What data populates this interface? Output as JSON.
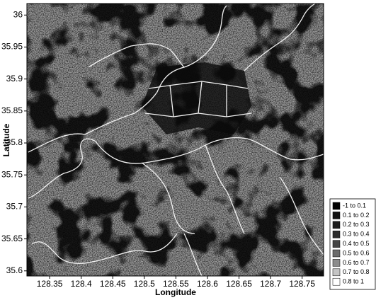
{
  "map": {
    "x_label": "Longitude",
    "y_label": "Latitude",
    "xlim": [
      128.314,
      128.784
    ],
    "ylim": [
      35.592,
      36.018
    ],
    "xticks": [
      128.35,
      128.4,
      128.45,
      128.5,
      128.55,
      128.6,
      128.65,
      128.7,
      128.75
    ],
    "yticks": [
      35.6,
      35.65,
      35.7,
      35.75,
      35.8,
      35.85,
      35.9,
      35.95,
      36
    ],
    "legend": [
      {
        "label": "-1 to 0.1",
        "color": "#000000"
      },
      {
        "label": "0.1 to 0.2",
        "color": "#111111"
      },
      {
        "label": "0.2 to 0.3",
        "color": "#1e1e1e"
      },
      {
        "label": "0.3 to 0.4",
        "color": "#2c2c2c"
      },
      {
        "label": "0.4 to 0.5",
        "color": "#444444"
      },
      {
        "label": "0.5 to 0.6",
        "color": "#6a6a6a"
      },
      {
        "label": "0.6 to 0.7",
        "color": "#8c8c8c"
      },
      {
        "label": "0.7 to 0.8",
        "color": "#c4c4c4"
      },
      {
        "label": "0.8 to 1",
        "color": "#ffffff"
      }
    ]
  }
}
